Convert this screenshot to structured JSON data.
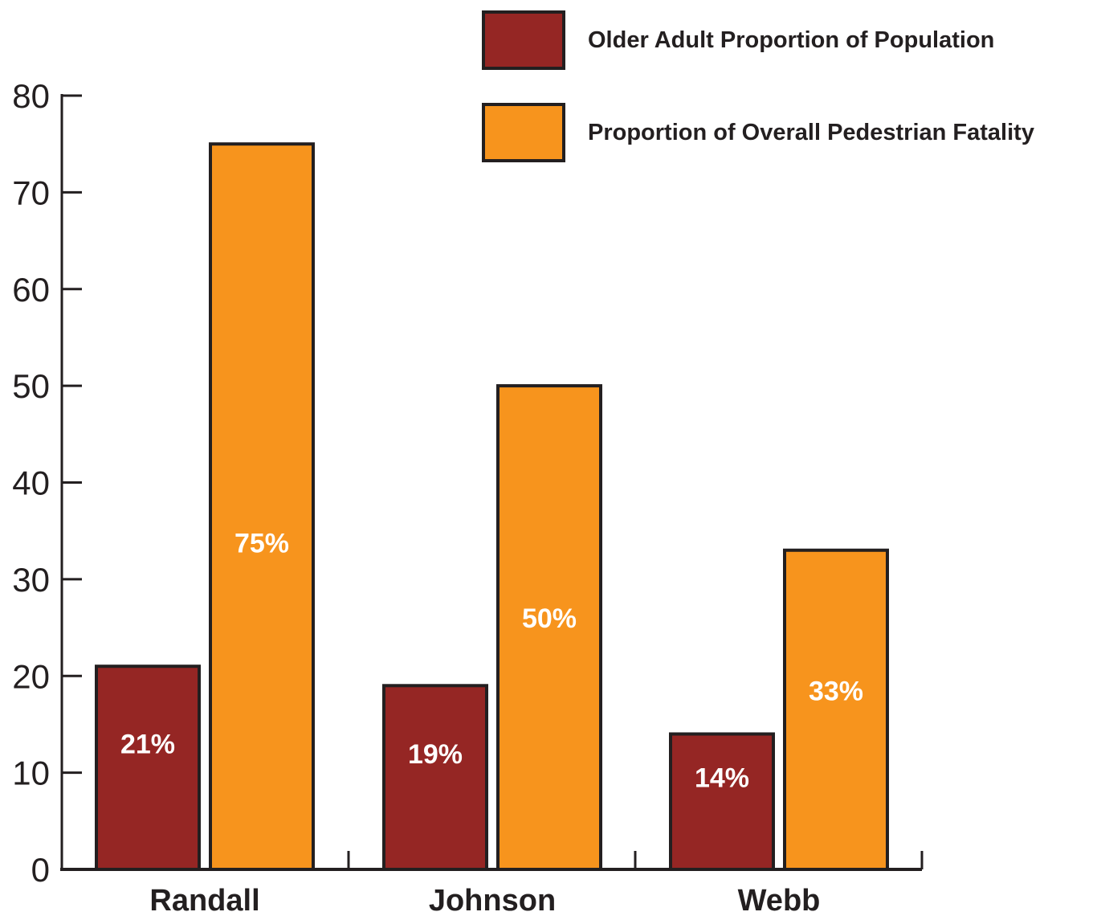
{
  "chart_data": {
    "type": "bar",
    "categories": [
      "Randall",
      "Johnson",
      "Webb"
    ],
    "series": [
      {
        "name": "Older Adult Proportion of Population",
        "color": "#952624",
        "values": [
          21,
          19,
          14
        ],
        "labels": [
          "21%",
          "19%",
          "14%"
        ]
      },
      {
        "name": "Proportion of Overall Pedestrian Fatality",
        "color": "#f7941d",
        "values": [
          75,
          50,
          33
        ],
        "labels": [
          "75%",
          "50%",
          "33%"
        ]
      }
    ],
    "yticks": [
      "0",
      "10",
      "20",
      "30",
      "40",
      "50",
      "60",
      "70",
      "80"
    ],
    "ylim": [
      0,
      80
    ],
    "grid": false,
    "legend": "top-right",
    "outline_color": "#231f20",
    "label_color": "#ffffff"
  }
}
